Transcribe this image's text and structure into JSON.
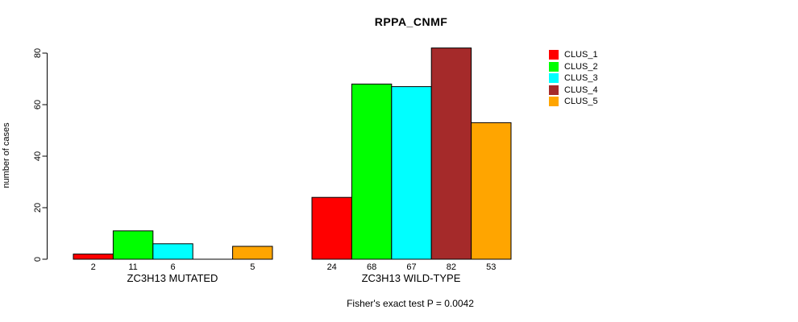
{
  "title": "RPPA_CNMF",
  "chart_data": {
    "type": "bar",
    "title": "RPPA_CNMF",
    "ylabel": "number of cases",
    "ylim": [
      0,
      82
    ],
    "yticks": [
      0,
      20,
      40,
      60,
      80
    ],
    "grid": false,
    "legend_position": "right-inside-top",
    "bar_value_labels_shown": true,
    "groups": [
      "ZC3H13 MUTATED",
      "ZC3H13 WILD-TYPE"
    ],
    "series": [
      {
        "name": "CLUS_1",
        "color": "#FF0000",
        "values": [
          2,
          24
        ]
      },
      {
        "name": "CLUS_2",
        "color": "#00FF00",
        "values": [
          11,
          68
        ]
      },
      {
        "name": "CLUS_3",
        "color": "#00FFFF",
        "values": [
          6,
          67
        ]
      },
      {
        "name": "CLUS_4",
        "color": "#A52A2A",
        "values": [
          0,
          82
        ]
      },
      {
        "name": "CLUS_5",
        "color": "#FFA500",
        "values": [
          5,
          53
        ]
      }
    ],
    "annotation": "Fisher's exact test P = 0.0042"
  },
  "colors": {
    "axis": "#000000",
    "bar_border": "#000000",
    "background": "#FFFFFF"
  }
}
